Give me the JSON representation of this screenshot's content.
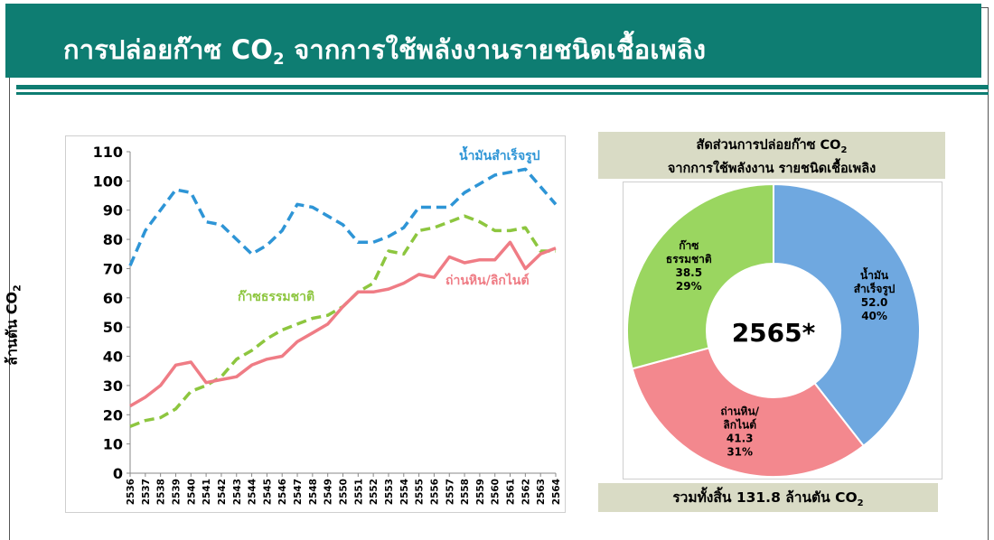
{
  "header": {
    "title_prefix": "การปล่อยก๊าซ CO",
    "title_sub": "2",
    "title_suffix": " จากการใช้พลังงานรายชนิดเชื้อเพลิง"
  },
  "colors": {
    "header_bg": "#0e7d72",
    "petroleum": "#2e95d6",
    "natural_gas": "#8dc63f",
    "coal": "#ef7c85",
    "petroleum_slice": "#6fa8e0",
    "natural_gas_slice": "#9ad660",
    "coal_slice": "#f3888e",
    "caption_bg": "#d9dbc5"
  },
  "chart_data": [
    {
      "type": "line",
      "ylabel_main": "ล้านตัน CO",
      "ylabel_sub": "2",
      "ylim": [
        0,
        110
      ],
      "yticks": [
        "0",
        "10",
        "20",
        "30",
        "40",
        "50",
        "60",
        "70",
        "80",
        "90",
        "100",
        "110"
      ],
      "x": [
        "2536",
        "2537",
        "2538",
        "2539",
        "2540",
        "2541",
        "2542",
        "2543",
        "2544",
        "2545",
        "2546",
        "2547",
        "2548",
        "2549",
        "2550",
        "2551",
        "2552",
        "2553",
        "2554",
        "2555",
        "2556",
        "2557",
        "2558",
        "2559",
        "2560",
        "2561",
        "2562",
        "2563",
        "2564"
      ],
      "series": [
        {
          "name": "น้ำมันสำเร็จรูป",
          "style": "dashed",
          "values": [
            71,
            83,
            90,
            97,
            96,
            86,
            85,
            80,
            75,
            78,
            83,
            92,
            91,
            88,
            85,
            79,
            79,
            81,
            84,
            91,
            91,
            91,
            96,
            99,
            102,
            103,
            104,
            98,
            92
          ]
        },
        {
          "name": "ก๊าซธรรมชาติ",
          "style": "dashed",
          "values": [
            16,
            18,
            19,
            22,
            28,
            30,
            33,
            39,
            42,
            46,
            49,
            51,
            53,
            54,
            57,
            62,
            65,
            76,
            75,
            83,
            84,
            86,
            88,
            86,
            83,
            83,
            84,
            76,
            76
          ]
        },
        {
          "name": "ถ่านหิน/ลิกไนต์",
          "style": "solid",
          "values": [
            23,
            26,
            30,
            37,
            38,
            31,
            32,
            33,
            37,
            39,
            40,
            45,
            48,
            51,
            57,
            62,
            62,
            63,
            65,
            68,
            67,
            74,
            72,
            73,
            73,
            79,
            70,
            75,
            77
          ]
        }
      ]
    },
    {
      "type": "pie",
      "title_line1_prefix": "สัดส่วนการปล่อยก๊าซ CO",
      "title_line1_sub": "2",
      "title_line2": "จากการใช้พลังงาน รายชนิดเชื้อเพลิง",
      "center_label": "2565*",
      "slices": [
        {
          "name_line1": "น้ำมัน",
          "name_line2": "สำเร็จรูป",
          "value": 52.0,
          "value_label": "52.0",
          "percent_label": "40%"
        },
        {
          "name_line1": "ถ่านหิน/",
          "name_line2": "ลิกไนต์",
          "value": 41.3,
          "value_label": "41.3",
          "percent_label": "31%"
        },
        {
          "name_line1": "ก๊าซ",
          "name_line2": "ธรรมชาติ",
          "value": 38.5,
          "value_label": "38.5",
          "percent_label": "29%"
        }
      ],
      "total_prefix": "รวมทั้งสิ้น 131.8 ล้านตัน CO",
      "total_sub": "2"
    }
  ]
}
